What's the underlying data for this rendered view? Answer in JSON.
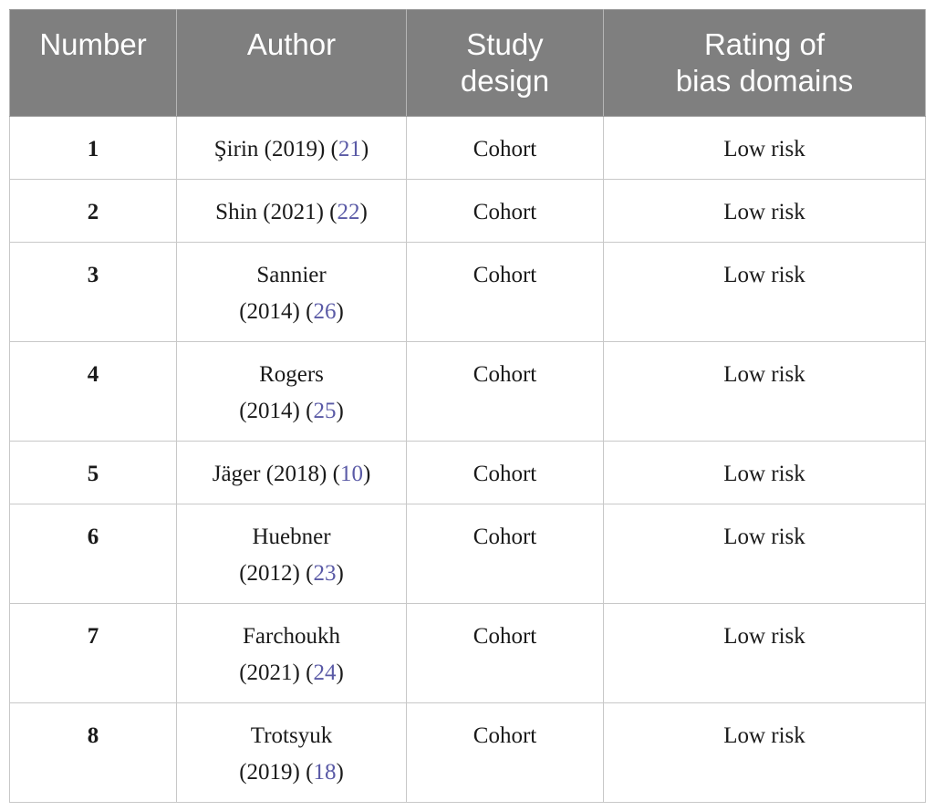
{
  "headers": [
    {
      "lines": [
        "Number"
      ]
    },
    {
      "lines": [
        "Author"
      ]
    },
    {
      "lines": [
        "Study",
        "design"
      ]
    },
    {
      "lines": [
        "Rating of",
        "bias domains"
      ]
    }
  ],
  "rows": [
    {
      "number": "1",
      "author_lines": [
        "Şirin (2019) ("
      ],
      "author_single": true,
      "author_name": "Şirin (2019) (",
      "ref": "21",
      "design": "Cohort",
      "rating": "Low risk"
    },
    {
      "number": "2",
      "author_single": true,
      "author_name": "Shin (2021) (",
      "ref": "22",
      "design": "Cohort",
      "rating": "Low risk"
    },
    {
      "number": "3",
      "author_single": false,
      "author_name": "Sannier",
      "author_year": "(2014) (",
      "ref": "26",
      "design": "Cohort",
      "rating": "Low risk"
    },
    {
      "number": "4",
      "author_single": false,
      "author_name": "Rogers",
      "author_year": "(2014) (",
      "ref": "25",
      "design": "Cohort",
      "rating": "Low risk"
    },
    {
      "number": "5",
      "author_single": true,
      "author_name": "Jäger (2018) (",
      "ref": "10",
      "design": "Cohort",
      "rating": "Low risk"
    },
    {
      "number": "6",
      "author_single": false,
      "author_name": "Huebner",
      "author_year": "(2012) (",
      "ref": "23",
      "design": "Cohort",
      "rating": "Low risk"
    },
    {
      "number": "7",
      "author_single": false,
      "author_name": "Farchoukh",
      "author_year": "(2021) (",
      "ref": "24",
      "design": "Cohort",
      "rating": "Low risk"
    },
    {
      "number": "8",
      "author_single": false,
      "author_name": "Trotsyuk",
      "author_year": "(2019) (",
      "ref": "18",
      "design": "Cohort",
      "rating": "Low risk"
    }
  ],
  "closing_paren": ")",
  "colors": {
    "header_bg": "#7f7f7f",
    "header_text": "#ffffff",
    "ref_link": "#5a5aa6",
    "grid": "#c8c8c8"
  }
}
